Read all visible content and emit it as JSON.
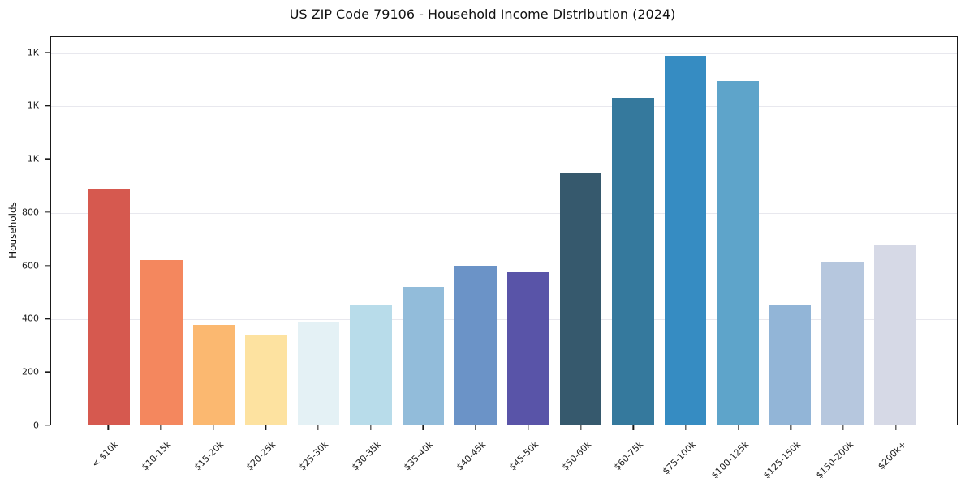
{
  "figure": {
    "title": "US ZIP Code 79106 - Household Income Distribution (2024)"
  },
  "chart_data": {
    "type": "bar",
    "title": "US ZIP Code 79106 - Household Income Distribution (2024)",
    "xlabel": "",
    "ylabel": "Households",
    "categories": [
      "< $10k",
      "$10-15k",
      "$15-20k",
      "$20-25k",
      "$25-30k",
      "$30-35k",
      "$35-40k",
      "$40-45k",
      "$45-50k",
      "$50-60k",
      "$60-75k",
      "$75-100k",
      "$100-125k",
      "$125-150k",
      "$150-200k",
      "$200k+"
    ],
    "values": [
      890,
      620,
      375,
      335,
      385,
      450,
      520,
      600,
      575,
      950,
      1230,
      1390,
      1295,
      450,
      610,
      675
    ],
    "bar_colors": [
      "#d6594f",
      "#f4875e",
      "#fbb870",
      "#fde2a0",
      "#e4f1f5",
      "#b8dcea",
      "#92bcda",
      "#6b93c7",
      "#5954a8",
      "#36596d",
      "#35799d",
      "#368cc2",
      "#5ea4ca",
      "#92b5d7",
      "#b6c7de",
      "#d6d9e6"
    ],
    "ylim": [
      0,
      1460
    ],
    "yticks": [
      0,
      200,
      400,
      600,
      800,
      1000,
      1200,
      1400
    ],
    "ytick_labels": [
      "0",
      "200",
      "400",
      "600",
      "800",
      "1K",
      "1K",
      "1K"
    ],
    "grid": "horizontal",
    "legend": false,
    "colors": {
      "axis": "#1a1a1a",
      "gridline": "#e8e8ee",
      "text": "#1c1c1c",
      "background": "#ffffff"
    }
  }
}
